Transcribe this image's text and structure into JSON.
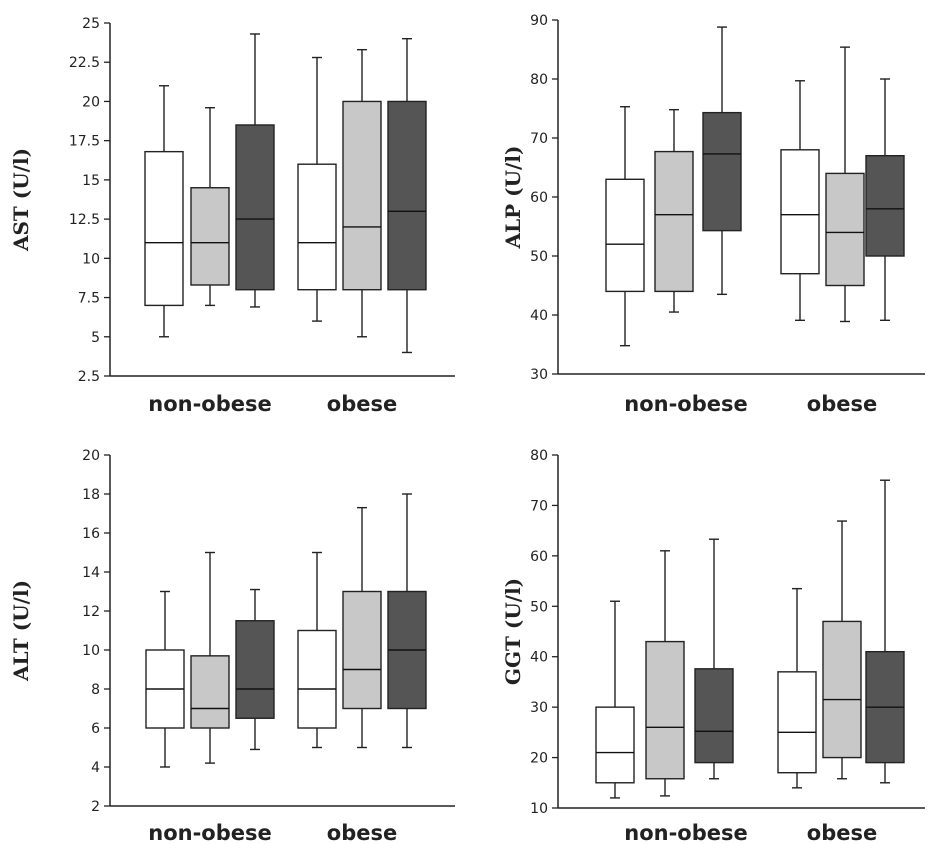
{
  "chart_data": [
    {
      "type": "boxplot",
      "ylabel": "AST (U/l)",
      "ylim": [
        2.5,
        25
      ],
      "yticks": [
        2.5,
        5,
        7.5,
        10,
        12.5,
        15,
        17.5,
        20,
        22.5,
        25
      ],
      "ytick_labels": [
        "2.5",
        "5",
        "7.5",
        "10",
        "12.5",
        "15",
        "17.5",
        "20",
        "22.5",
        "25"
      ],
      "categories": [
        "non-obese",
        "obese"
      ],
      "series_colors": [
        "#ffffff",
        "#c8c8c8",
        "#555555"
      ],
      "boxes": [
        [
          {
            "min": 5,
            "q1": 7,
            "median": 11,
            "q3": 16.8,
            "max": 21
          },
          {
            "min": 7,
            "q1": 8.3,
            "median": 11,
            "q3": 14.5,
            "max": 19.6
          },
          {
            "min": 6.9,
            "q1": 8,
            "median": 12.5,
            "q3": 18.5,
            "max": 24.3
          }
        ],
        [
          {
            "min": 6,
            "q1": 8,
            "median": 11,
            "q3": 16,
            "max": 22.8
          },
          {
            "min": 5,
            "q1": 8,
            "median": 12,
            "q3": 20,
            "max": 23.3
          },
          {
            "min": 4,
            "q1": 8,
            "median": 13,
            "q3": 20,
            "max": 24
          }
        ]
      ]
    },
    {
      "type": "boxplot",
      "ylabel": "ALP (U/l)",
      "ylim": [
        30,
        90
      ],
      "yticks": [
        30,
        40,
        50,
        60,
        70,
        80,
        90
      ],
      "ytick_labels": [
        "30",
        "40",
        "50",
        "60",
        "70",
        "80",
        "90"
      ],
      "categories": [
        "non-obese",
        "obese"
      ],
      "series_colors": [
        "#ffffff",
        "#c8c8c8",
        "#555555"
      ],
      "boxes": [
        [
          {
            "min": 34.8,
            "q1": 44,
            "median": 52,
            "q3": 63,
            "max": 75.3
          },
          {
            "min": 40.5,
            "q1": 44,
            "median": 57,
            "q3": 67.7,
            "max": 74.8
          },
          {
            "min": 43.5,
            "q1": 54.3,
            "median": 67.3,
            "q3": 74.3,
            "max": 88.8
          }
        ],
        [
          {
            "min": 39.1,
            "q1": 47,
            "median": 57,
            "q3": 68,
            "max": 79.7
          },
          {
            "min": 38.9,
            "q1": 45,
            "median": 54,
            "q3": 64,
            "max": 85.4
          },
          {
            "min": 39.1,
            "q1": 50,
            "median": 58,
            "q3": 67,
            "max": 80
          }
        ]
      ]
    },
    {
      "type": "boxplot",
      "ylabel": "ALT (U/l)",
      "ylim": [
        2,
        20
      ],
      "yticks": [
        2,
        4,
        6,
        8,
        10,
        12,
        14,
        16,
        18,
        20
      ],
      "ytick_labels": [
        "2",
        "4",
        "6",
        "8",
        "10",
        "12",
        "14",
        "16",
        "18",
        "20"
      ],
      "categories": [
        "non-obese",
        "obese"
      ],
      "series_colors": [
        "#ffffff",
        "#c8c8c8",
        "#555555"
      ],
      "boxes": [
        [
          {
            "min": 4,
            "q1": 6,
            "median": 8,
            "q3": 10,
            "max": 13
          },
          {
            "min": 4.2,
            "q1": 6,
            "median": 7,
            "q3": 9.7,
            "max": 15
          },
          {
            "min": 4.9,
            "q1": 6.5,
            "median": 8,
            "q3": 11.5,
            "max": 13.1
          }
        ],
        [
          {
            "min": 5,
            "q1": 6,
            "median": 8,
            "q3": 11,
            "max": 15
          },
          {
            "min": 5,
            "q1": 7,
            "median": 9,
            "q3": 13,
            "max": 17.3
          },
          {
            "min": 5,
            "q1": 7,
            "median": 10,
            "q3": 13,
            "max": 18
          }
        ]
      ]
    },
    {
      "type": "boxplot",
      "ylabel": "GGT (U/l)",
      "ylim": [
        10,
        80
      ],
      "yticks": [
        10,
        20,
        30,
        40,
        50,
        60,
        70,
        80
      ],
      "ytick_labels": [
        "10",
        "20",
        "30",
        "40",
        "50",
        "60",
        "70",
        "80"
      ],
      "categories": [
        "non-obese",
        "obese"
      ],
      "series_colors": [
        "#ffffff",
        "#c8c8c8",
        "#555555"
      ],
      "boxes": [
        [
          {
            "min": 12,
            "q1": 15,
            "median": 21,
            "q3": 30,
            "max": 51
          },
          {
            "min": 12.4,
            "q1": 15.8,
            "median": 26,
            "q3": 43,
            "max": 61
          },
          {
            "min": 15.8,
            "q1": 19,
            "median": 25.2,
            "q3": 37.6,
            "max": 63.3
          }
        ],
        [
          {
            "min": 14,
            "q1": 17,
            "median": 25,
            "q3": 37,
            "max": 53.5
          },
          {
            "min": 15.8,
            "q1": 20,
            "median": 31.5,
            "q3": 47,
            "max": 66.9
          },
          {
            "min": 15,
            "q1": 19,
            "median": 30,
            "q3": 41,
            "max": 75
          }
        ]
      ]
    }
  ]
}
